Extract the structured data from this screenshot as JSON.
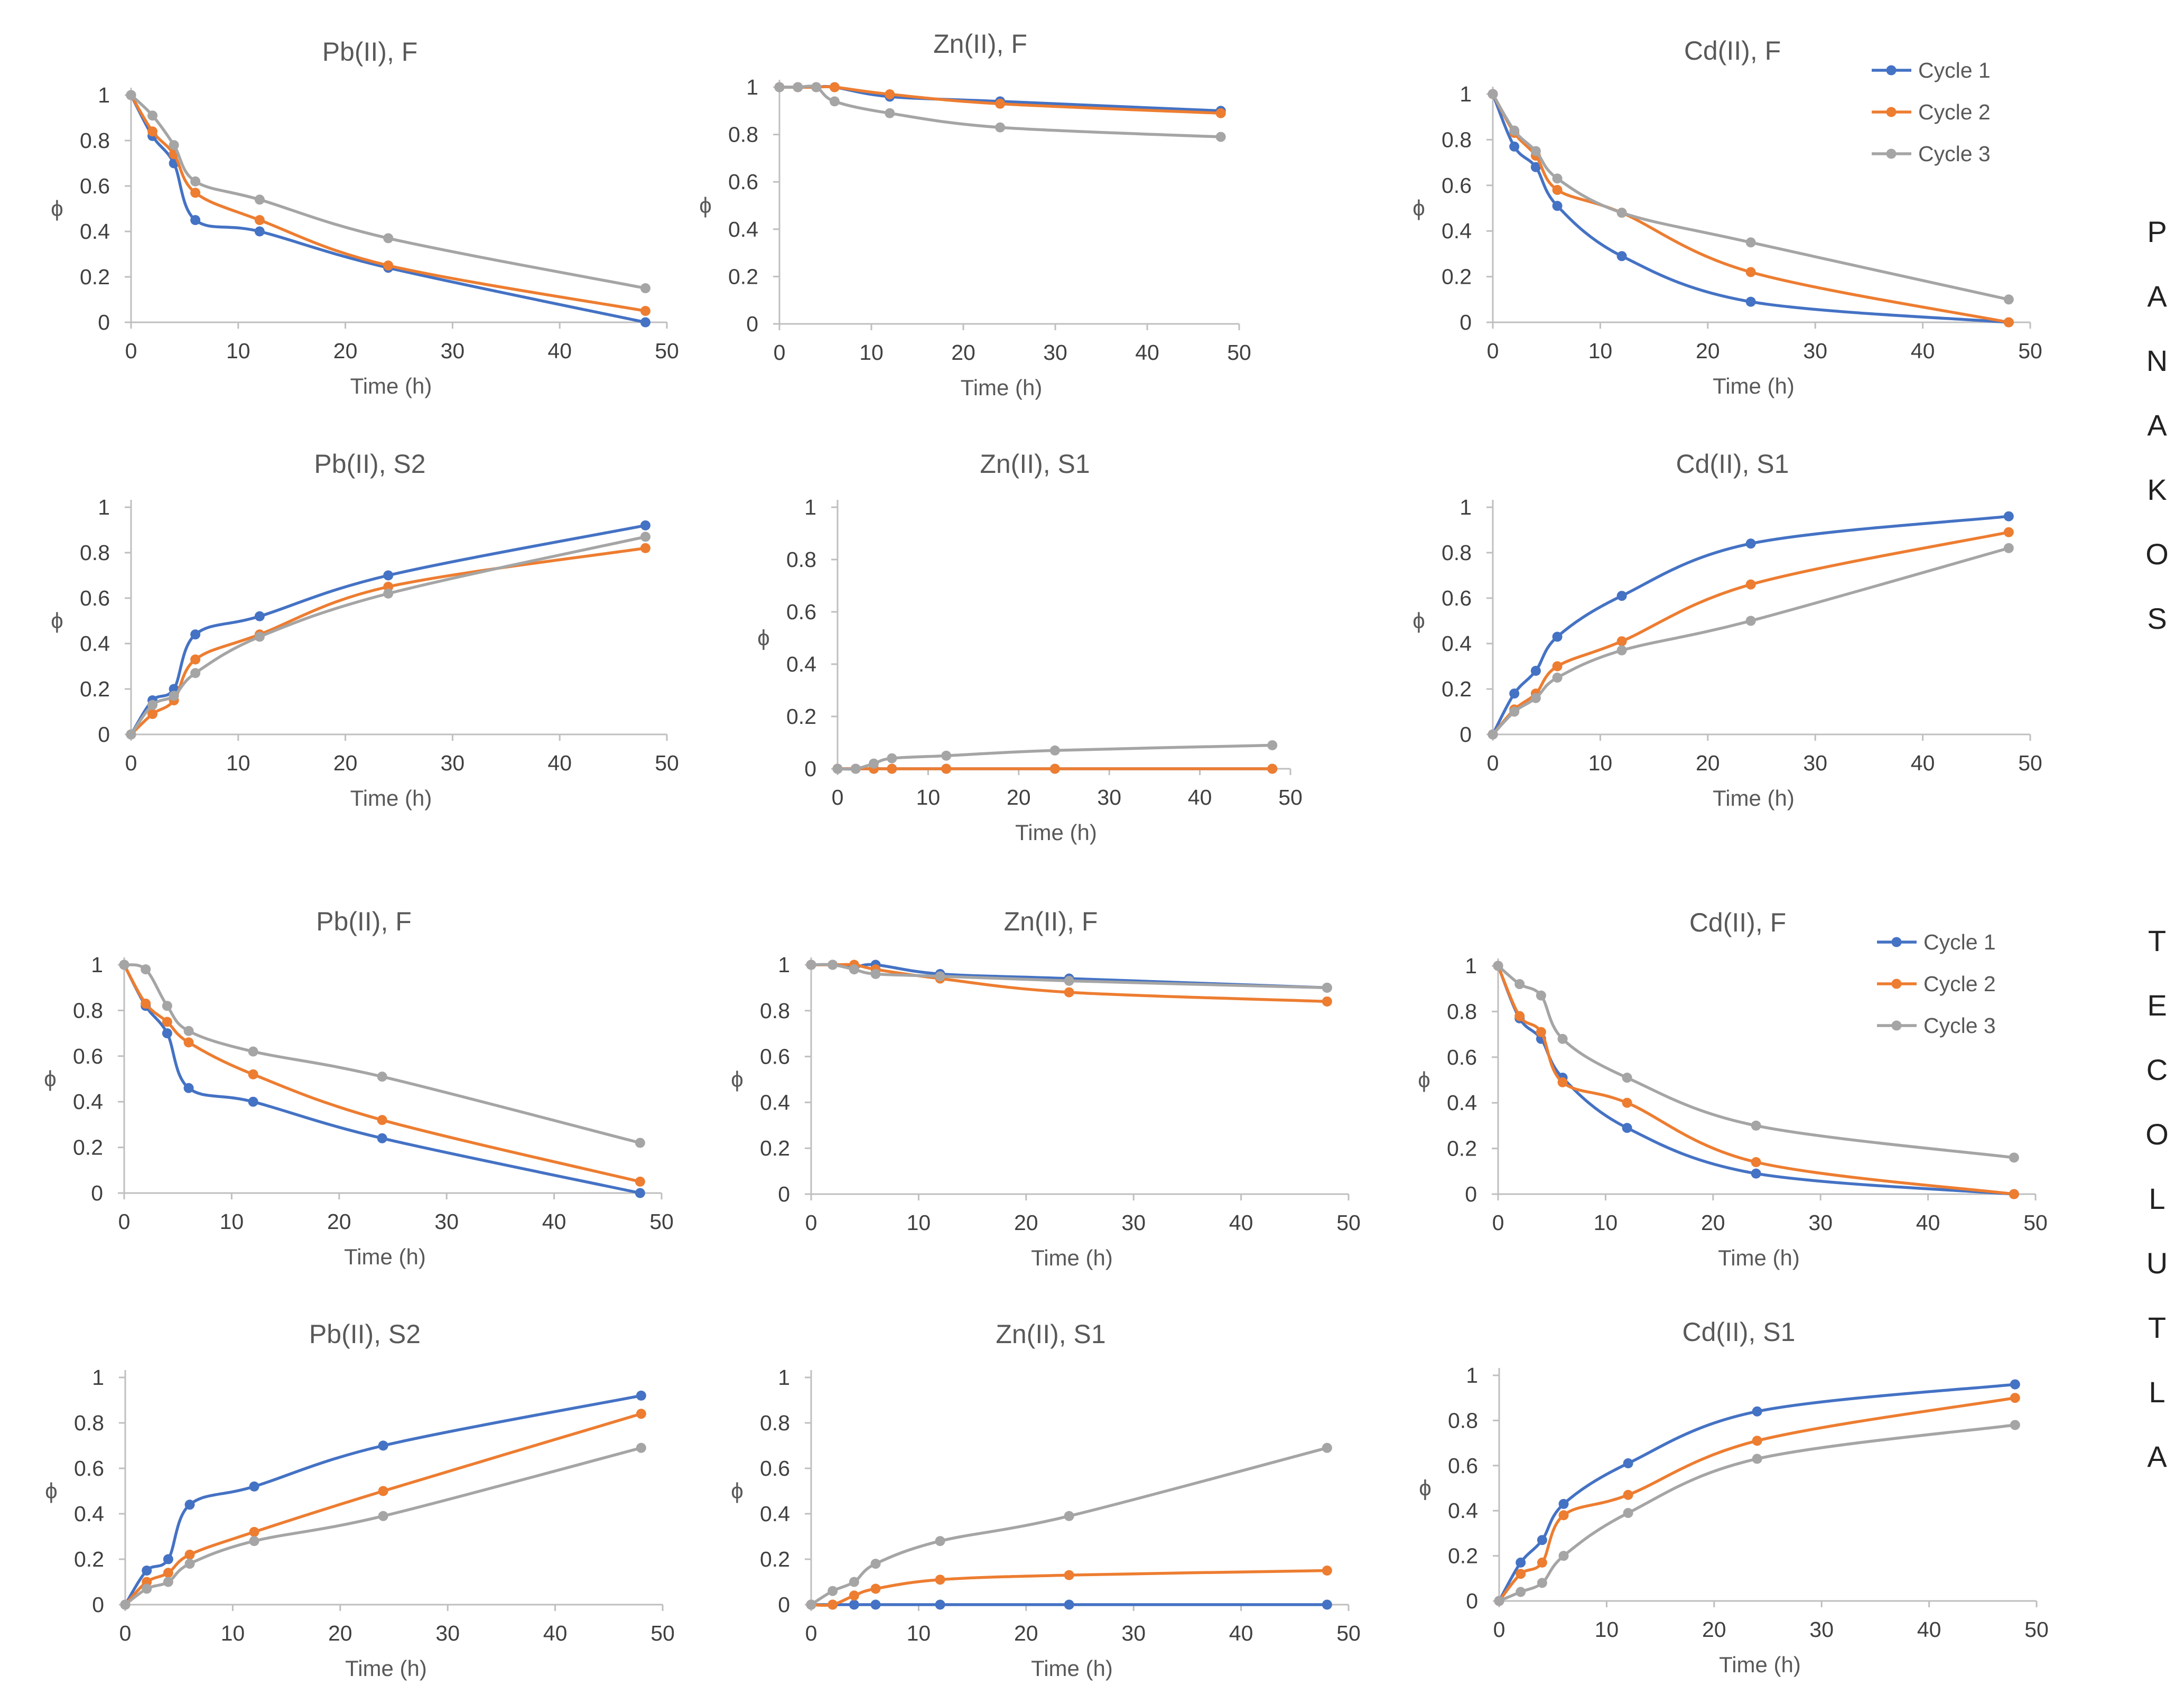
{
  "figure_labels": {
    "top_group": [
      "P",
      "A",
      "N",
      "A",
      "K",
      "O",
      "S"
    ],
    "bottom_group": [
      "T",
      "E",
      "C",
      "O",
      "L",
      "U",
      "T",
      "L",
      "A"
    ]
  },
  "legend_entries": [
    "Cycle 1",
    "Cycle 2",
    "Cycle 3"
  ],
  "series_colors": {
    "Cycle 1": "#4472C4",
    "Cycle 2": "#ED7D31",
    "Cycle 3": "#A5A5A5"
  },
  "chart_data": [
    {
      "type": "line",
      "group": "PANAKOS",
      "title": "Pb(II), F",
      "xlabel": "Time (h)",
      "ylabel": "ϕ",
      "xlim": [
        0,
        50
      ],
      "ylim": [
        0,
        1
      ],
      "x": [
        0,
        2,
        4,
        6,
        12,
        24,
        48
      ],
      "xticks": [
        "0",
        "10",
        "20",
        "30",
        "40",
        "50"
      ],
      "yticks": [
        "0",
        "0.2",
        "0.4",
        "0.6",
        "0.8",
        "1"
      ],
      "series": [
        {
          "name": "Cycle 1",
          "values": [
            1,
            0.82,
            0.7,
            0.45,
            0.4,
            0.24,
            0.0
          ]
        },
        {
          "name": "Cycle 2",
          "values": [
            1,
            0.84,
            0.74,
            0.57,
            0.45,
            0.25,
            0.05
          ]
        },
        {
          "name": "Cycle 3",
          "values": [
            1,
            0.91,
            0.78,
            0.62,
            0.54,
            0.37,
            0.15
          ]
        }
      ]
    },
    {
      "type": "line",
      "group": "PANAKOS",
      "title": "Zn(II), F",
      "xlabel": "Time (h)",
      "ylabel": "ϕ",
      "xlim": [
        0,
        50
      ],
      "ylim": [
        0,
        1
      ],
      "x": [
        0,
        2,
        4,
        6,
        12,
        24,
        48
      ],
      "xticks": [
        "0",
        "10",
        "20",
        "30",
        "40",
        "50"
      ],
      "yticks": [
        "0",
        "0.2",
        "0.4",
        "0.6",
        "0.8",
        "1"
      ],
      "series": [
        {
          "name": "Cycle 1",
          "values": [
            1,
            1,
            1,
            1.0,
            0.96,
            0.94,
            0.9
          ]
        },
        {
          "name": "Cycle 2",
          "values": [
            1,
            1,
            1,
            1.0,
            0.97,
            0.93,
            0.89
          ]
        },
        {
          "name": "Cycle 3",
          "values": [
            1,
            1,
            1,
            0.94,
            0.89,
            0.83,
            0.79
          ]
        }
      ]
    },
    {
      "type": "line",
      "group": "PANAKOS",
      "title": "Cd(II), F",
      "xlabel": "Time (h)",
      "ylabel": "ϕ",
      "xlim": [
        0,
        50
      ],
      "ylim": [
        0,
        1
      ],
      "x": [
        0,
        2,
        4,
        6,
        12,
        24,
        48
      ],
      "xticks": [
        "0",
        "10",
        "20",
        "30",
        "40",
        "50"
      ],
      "yticks": [
        "0",
        "0.2",
        "0.4",
        "0.6",
        "0.8",
        "1"
      ],
      "legend": true,
      "series": [
        {
          "name": "Cycle 1",
          "values": [
            1,
            0.77,
            0.68,
            0.51,
            0.29,
            0.09,
            0.0
          ]
        },
        {
          "name": "Cycle 2",
          "values": [
            1,
            0.83,
            0.73,
            0.58,
            0.48,
            0.22,
            0.0
          ]
        },
        {
          "name": "Cycle 3",
          "values": [
            1,
            0.84,
            0.75,
            0.63,
            0.48,
            0.35,
            0.1
          ]
        }
      ]
    },
    {
      "type": "line",
      "group": "PANAKOS",
      "title": "Pb(II), S2",
      "xlabel": "Time (h)",
      "ylabel": "ϕ",
      "xlim": [
        0,
        50
      ],
      "ylim": [
        0,
        1
      ],
      "x": [
        0,
        2,
        4,
        6,
        12,
        24,
        48
      ],
      "xticks": [
        "0",
        "10",
        "20",
        "30",
        "40",
        "50"
      ],
      "yticks": [
        "0",
        "0.2",
        "0.4",
        "0.6",
        "0.8",
        "1"
      ],
      "series": [
        {
          "name": "Cycle 1",
          "values": [
            0,
            0.15,
            0.2,
            0.44,
            0.52,
            0.7,
            0.92
          ]
        },
        {
          "name": "Cycle 2",
          "values": [
            0,
            0.09,
            0.15,
            0.33,
            0.44,
            0.65,
            0.82
          ]
        },
        {
          "name": "Cycle 3",
          "values": [
            0,
            0.13,
            0.17,
            0.27,
            0.43,
            0.62,
            0.87
          ]
        }
      ]
    },
    {
      "type": "line",
      "group": "PANAKOS",
      "title": "Zn(II), S1",
      "xlabel": "Time (h)",
      "ylabel": "ϕ",
      "xlim": [
        0,
        50
      ],
      "ylim": [
        0,
        1
      ],
      "x": [
        0,
        2,
        4,
        6,
        12,
        24,
        48
      ],
      "xticks": [
        "0",
        "10",
        "20",
        "30",
        "40",
        "50"
      ],
      "yticks": [
        "0",
        "0.2",
        "0.4",
        "0.6",
        "0.8",
        "1"
      ],
      "series": [
        {
          "name": "Cycle 1",
          "values": [
            0,
            0,
            0,
            0,
            0,
            0,
            0
          ]
        },
        {
          "name": "Cycle 2",
          "values": [
            0,
            0,
            0,
            0,
            0,
            0,
            0
          ]
        },
        {
          "name": "Cycle 3",
          "values": [
            0,
            0,
            0.02,
            0.04,
            0.05,
            0.07,
            0.09
          ]
        }
      ]
    },
    {
      "type": "line",
      "group": "PANAKOS",
      "title": "Cd(II), S1",
      "xlabel": "Time (h)",
      "ylabel": "ϕ",
      "xlim": [
        0,
        50
      ],
      "ylim": [
        0,
        1
      ],
      "x": [
        0,
        2,
        4,
        6,
        12,
        24,
        48
      ],
      "xticks": [
        "0",
        "10",
        "20",
        "30",
        "40",
        "50"
      ],
      "yticks": [
        "0",
        "0.2",
        "0.4",
        "0.6",
        "0.8",
        "1"
      ],
      "series": [
        {
          "name": "Cycle 1",
          "values": [
            0,
            0.18,
            0.28,
            0.43,
            0.61,
            0.84,
            0.96
          ]
        },
        {
          "name": "Cycle 2",
          "values": [
            0,
            0.11,
            0.18,
            0.3,
            0.41,
            0.66,
            0.89
          ]
        },
        {
          "name": "Cycle 3",
          "values": [
            0,
            0.1,
            0.16,
            0.25,
            0.37,
            0.5,
            0.82
          ]
        }
      ]
    },
    {
      "type": "line",
      "group": "TECOLUTLA",
      "title": "Pb(II), F",
      "xlabel": "Time (h)",
      "ylabel": "ϕ",
      "xlim": [
        0,
        50
      ],
      "ylim": [
        0,
        1
      ],
      "x": [
        0,
        2,
        4,
        6,
        12,
        24,
        48
      ],
      "xticks": [
        "0",
        "10",
        "20",
        "30",
        "40",
        "50"
      ],
      "yticks": [
        "0",
        "0.2",
        "0.4",
        "0.6",
        "0.8",
        "1"
      ],
      "series": [
        {
          "name": "Cycle 1",
          "values": [
            1,
            0.82,
            0.7,
            0.46,
            0.4,
            0.24,
            0.0
          ]
        },
        {
          "name": "Cycle 2",
          "values": [
            1,
            0.83,
            0.75,
            0.66,
            0.52,
            0.32,
            0.05
          ]
        },
        {
          "name": "Cycle 3",
          "values": [
            1,
            0.98,
            0.82,
            0.71,
            0.62,
            0.51,
            0.22
          ]
        }
      ]
    },
    {
      "type": "line",
      "group": "TECOLUTLA",
      "title": "Zn(II), F",
      "xlabel": "Time (h)",
      "ylabel": "ϕ",
      "xlim": [
        0,
        50
      ],
      "ylim": [
        0,
        1
      ],
      "x": [
        0,
        2,
        4,
        6,
        12,
        24,
        48
      ],
      "xticks": [
        "0",
        "10",
        "20",
        "30",
        "40",
        "50"
      ],
      "yticks": [
        "0",
        "0.2",
        "0.4",
        "0.6",
        "0.8",
        "1"
      ],
      "series": [
        {
          "name": "Cycle 1",
          "values": [
            1,
            1,
            0.99,
            1.0,
            0.96,
            0.94,
            0.9
          ]
        },
        {
          "name": "Cycle 2",
          "values": [
            1,
            1,
            1.0,
            0.98,
            0.94,
            0.88,
            0.84
          ]
        },
        {
          "name": "Cycle 3",
          "values": [
            1,
            1,
            0.98,
            0.96,
            0.95,
            0.93,
            0.9
          ]
        }
      ]
    },
    {
      "type": "line",
      "group": "TECOLUTLA",
      "title": "Cd(II), F",
      "xlabel": "Time (h)",
      "ylabel": "ϕ",
      "xlim": [
        0,
        50
      ],
      "ylim": [
        0,
        1
      ],
      "x": [
        0,
        2,
        4,
        6,
        12,
        24,
        48
      ],
      "xticks": [
        "0",
        "10",
        "20",
        "30",
        "40",
        "50"
      ],
      "yticks": [
        "0",
        "0.2",
        "0.4",
        "0.6",
        "0.8",
        "1"
      ],
      "legend": true,
      "series": [
        {
          "name": "Cycle 1",
          "values": [
            1,
            0.77,
            0.68,
            0.51,
            0.29,
            0.09,
            0.0
          ]
        },
        {
          "name": "Cycle 2",
          "values": [
            1,
            0.78,
            0.71,
            0.49,
            0.4,
            0.14,
            0.0
          ]
        },
        {
          "name": "Cycle 3",
          "values": [
            1,
            0.92,
            0.87,
            0.68,
            0.51,
            0.3,
            0.16
          ]
        }
      ]
    },
    {
      "type": "line",
      "group": "TECOLUTLA",
      "title": "Pb(II), S2",
      "xlabel": "Time (h)",
      "ylabel": "ϕ",
      "xlim": [
        0,
        50
      ],
      "ylim": [
        0,
        1
      ],
      "x": [
        0,
        2,
        4,
        6,
        12,
        24,
        48
      ],
      "xticks": [
        "0",
        "10",
        "20",
        "30",
        "40",
        "50"
      ],
      "yticks": [
        "0",
        "0.2",
        "0.4",
        "0.6",
        "0.8",
        "1"
      ],
      "series": [
        {
          "name": "Cycle 1",
          "values": [
            0,
            0.15,
            0.2,
            0.44,
            0.52,
            0.7,
            0.92
          ]
        },
        {
          "name": "Cycle 2",
          "values": [
            0,
            0.1,
            0.14,
            0.22,
            0.32,
            0.5,
            0.84
          ]
        },
        {
          "name": "Cycle 3",
          "values": [
            0,
            0.07,
            0.1,
            0.18,
            0.28,
            0.39,
            0.69
          ]
        }
      ]
    },
    {
      "type": "line",
      "group": "TECOLUTLA",
      "title": "Zn(II), S1",
      "xlabel": "Time (h)",
      "ylabel": "ϕ",
      "xlim": [
        0,
        50
      ],
      "ylim": [
        0,
        1
      ],
      "x": [
        0,
        2,
        4,
        6,
        12,
        24,
        48
      ],
      "xticks": [
        "0",
        "10",
        "20",
        "30",
        "40",
        "50"
      ],
      "yticks": [
        "0",
        "0.2",
        "0.4",
        "0.6",
        "0.8",
        "1"
      ],
      "series": [
        {
          "name": "Cycle 1",
          "values": [
            0,
            0,
            0,
            0,
            0,
            0,
            0
          ]
        },
        {
          "name": "Cycle 2",
          "values": [
            0,
            0.0,
            0.04,
            0.07,
            0.11,
            0.13,
            0.15
          ]
        },
        {
          "name": "Cycle 3",
          "values": [
            0,
            0.06,
            0.1,
            0.18,
            0.28,
            0.39,
            0.69
          ]
        }
      ]
    },
    {
      "type": "line",
      "group": "TECOLUTLA",
      "title": "Cd(II), S1",
      "xlabel": "Time (h)",
      "ylabel": "ϕ",
      "xlim": [
        0,
        50
      ],
      "ylim": [
        0,
        1
      ],
      "x": [
        0,
        2,
        4,
        6,
        12,
        24,
        48
      ],
      "xticks": [
        "0",
        "10",
        "20",
        "30",
        "40",
        "50"
      ],
      "yticks": [
        "0",
        "0.2",
        "0.4",
        "0.6",
        "0.8",
        "1"
      ],
      "series": [
        {
          "name": "Cycle 1",
          "values": [
            0,
            0.17,
            0.27,
            0.43,
            0.61,
            0.84,
            0.96
          ]
        },
        {
          "name": "Cycle 2",
          "values": [
            0,
            0.12,
            0.17,
            0.38,
            0.47,
            0.71,
            0.9
          ]
        },
        {
          "name": "Cycle 3",
          "values": [
            0,
            0.04,
            0.08,
            0.2,
            0.39,
            0.63,
            0.78
          ]
        }
      ]
    }
  ]
}
